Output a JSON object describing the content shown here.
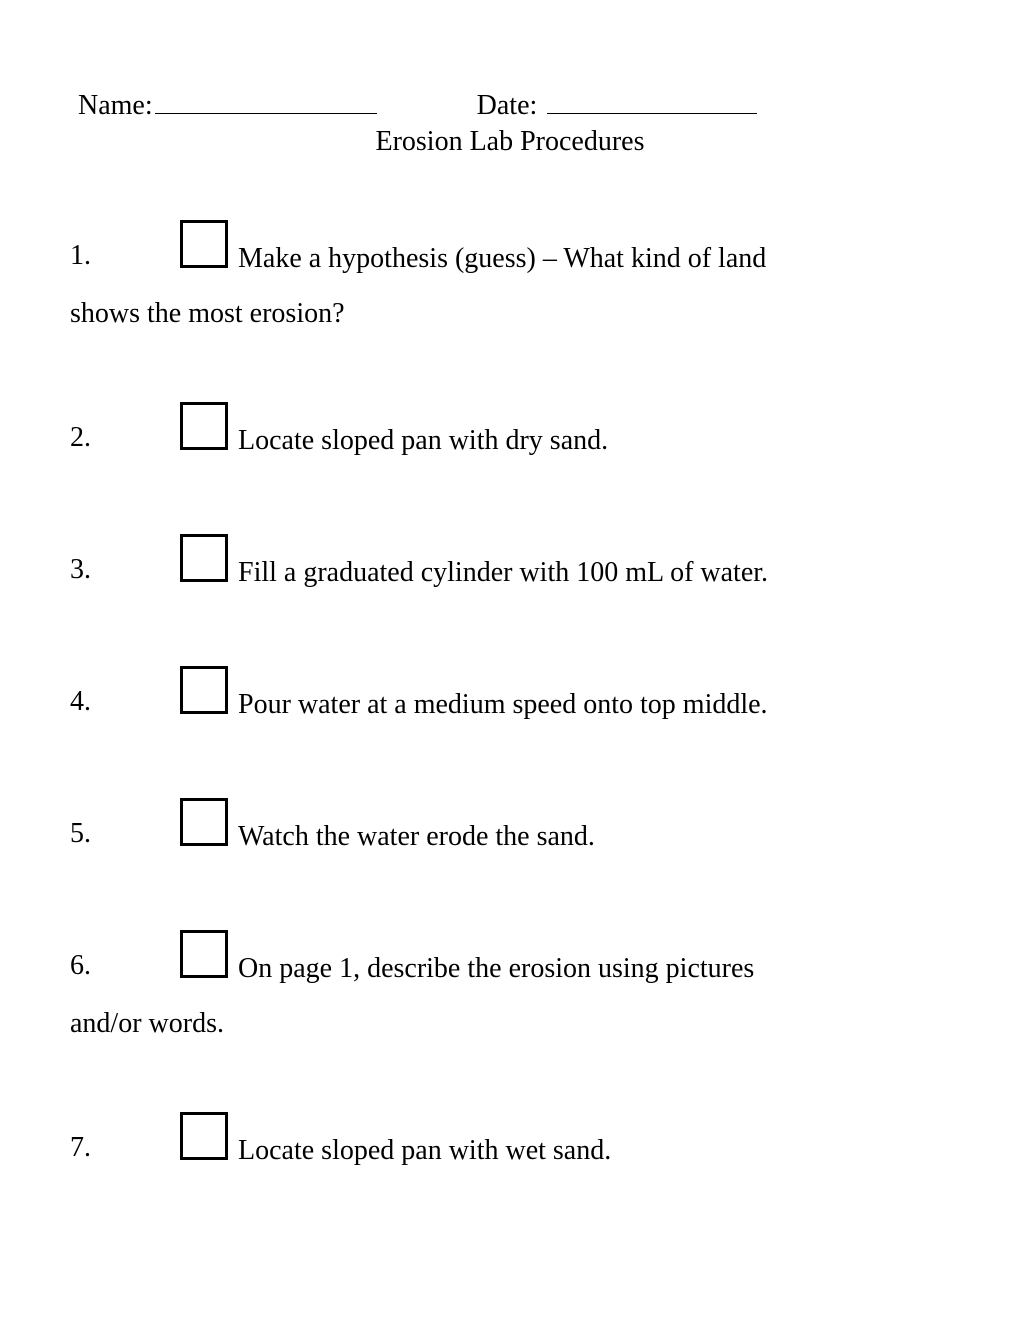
{
  "header": {
    "name_label": "Name:",
    "date_label": "Date:",
    "title": "Erosion Lab Procedures"
  },
  "items": [
    {
      "num": "1.",
      "text_first": "Make a hypothesis (guess) – What kind of land",
      "text_cont": "shows the most erosion?"
    },
    {
      "num": "2.",
      "text_first": " Locate sloped pan with dry sand.",
      "text_cont": ""
    },
    {
      "num": "3.",
      "text_first": "Fill a graduated cylinder with 100 mL of water.",
      "text_cont": ""
    },
    {
      "num": "4.",
      "text_first": " Pour water at a medium speed onto top middle.",
      "text_cont": ""
    },
    {
      "num": "5.",
      "text_first": " Watch the water erode the sand.",
      "text_cont": ""
    },
    {
      "num": "6.",
      "text_first": " On page 1, describe the erosion using pictures",
      "text_cont": "and/or words."
    },
    {
      "num": "7.",
      "text_first": " Locate sloped pan with wet sand.",
      "text_cont": ""
    }
  ]
}
